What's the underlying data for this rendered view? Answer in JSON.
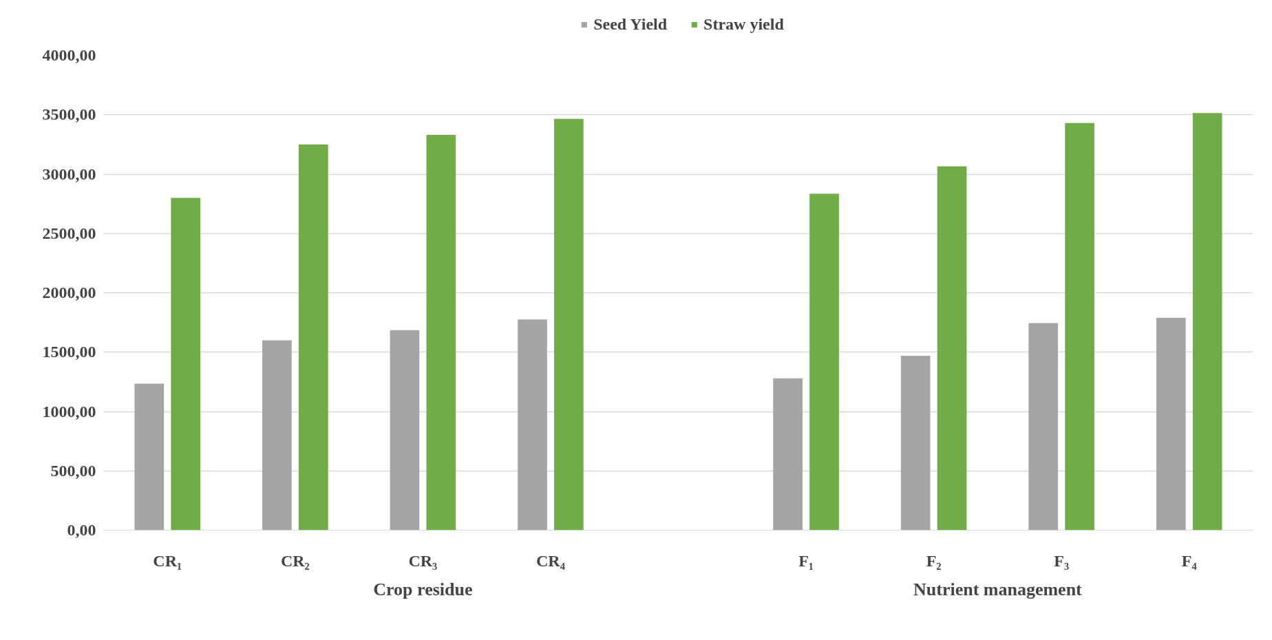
{
  "chart_data": {
    "type": "bar",
    "categories": [
      "CR₁",
      "CR₂",
      "CR₃",
      "CR₄",
      null,
      "F₁",
      "F₂",
      "F₃",
      "F₄"
    ],
    "series": [
      {
        "name": "Seed Yield",
        "color": "#a5a5a5",
        "values": [
          1235,
          1600,
          1685,
          1775,
          null,
          1280,
          1470,
          1745,
          1790
        ]
      },
      {
        "name": "Straw yield",
        "color": "#70ad47",
        "values": [
          2800,
          3250,
          3330,
          3465,
          null,
          2835,
          3065,
          3430,
          3515
        ]
      }
    ],
    "ylim": [
      0,
      4000
    ],
    "yticks": [
      {
        "value": 0,
        "label": "0,00"
      },
      {
        "value": 500,
        "label": "500,00"
      },
      {
        "value": 1000,
        "label": "1000,00"
      },
      {
        "value": 1500,
        "label": "1500,00"
      },
      {
        "value": 2000,
        "label": "2000,00"
      },
      {
        "value": 2500,
        "label": "2500,00"
      },
      {
        "value": 3000,
        "label": "3000,00"
      },
      {
        "value": 3500,
        "label": "3500,00"
      },
      {
        "value": 4000,
        "label": "4000,00"
      }
    ],
    "grid": "y",
    "legend": "top",
    "annotations": [
      "Crop residue",
      "Nutrient management"
    ]
  }
}
